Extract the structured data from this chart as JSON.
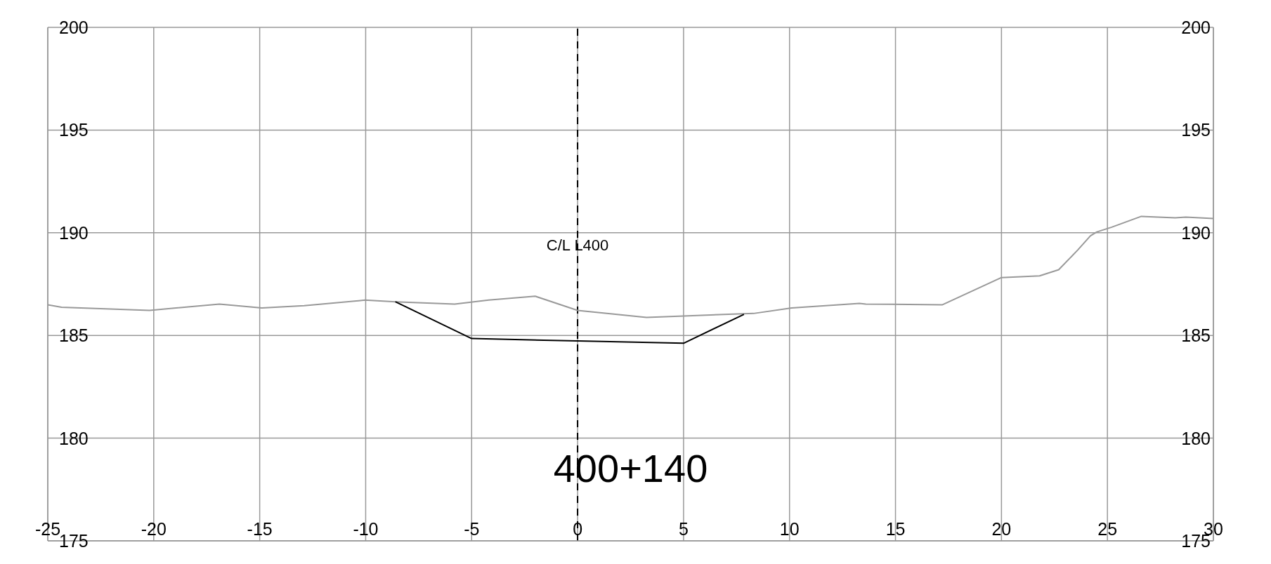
{
  "chart_data": {
    "type": "line",
    "series": [
      {
        "color": "#999999",
        "x": [
          -25,
          -24.35,
          -20.2,
          -16.9,
          -14.9,
          -12.9,
          -10.03,
          -8.6,
          -5.8,
          -4.2,
          -2.0,
          0,
          3.25,
          5,
          8.3,
          10.1,
          13.3,
          13.6,
          17.2,
          20.0,
          21.8,
          22.7,
          23.6,
          24.2,
          24.5,
          25.2,
          26.6,
          28.2,
          28.7,
          30
        ],
        "values": [
          186.49,
          186.37,
          186.22,
          186.53,
          186.34,
          186.45,
          186.72,
          186.64,
          186.53,
          186.72,
          186.91,
          186.22,
          185.88,
          185.95,
          186.07,
          186.34,
          186.56,
          186.53,
          186.49,
          187.82,
          187.9,
          188.2,
          189.16,
          189.85,
          190.04,
          190.27,
          190.8,
          190.73,
          190.76,
          190.69
        ]
      },
      {
        "color": "#000000",
        "x": [
          -8.6,
          -5.0,
          0,
          5,
          7.85
        ],
        "values": [
          186.64,
          184.85,
          184.73,
          184.62,
          186.03
        ]
      }
    ],
    "xlim": [
      -25,
      30
    ],
    "xticks": [
      -25,
      -20,
      -15,
      -10,
      -5,
      0,
      5,
      10,
      15,
      20,
      25,
      30
    ],
    "ylim": [
      175,
      200
    ],
    "yticks": [
      175,
      180,
      185,
      190,
      195,
      200
    ],
    "y2lim": [
      175,
      200
    ],
    "y2ticks": [
      175,
      180,
      185,
      190,
      195,
      200
    ],
    "grid": true,
    "legend": false,
    "marker": "none",
    "line_style": "solid",
    "ref_lines": [
      {
        "axis": "x",
        "value": 0,
        "label": "C/L L400",
        "color": "#000000",
        "line_style": "dashed"
      }
    ],
    "annotations": [
      "400+140"
    ]
  }
}
